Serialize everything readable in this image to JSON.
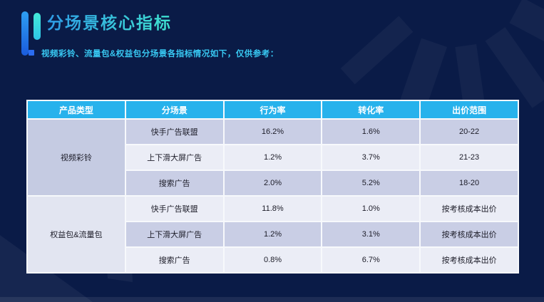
{
  "header": {
    "title": "分场景核心指标",
    "subtitle": "视频彩铃、流量包&权益包分场景各指标情况如下，仅供参考："
  },
  "table": {
    "columns": [
      "产品类型",
      "分场景",
      "行为率",
      "转化率",
      "出价范围"
    ],
    "groups": [
      {
        "product": "视频彩铃",
        "rows": [
          {
            "scene": "快手广告联盟",
            "behavior_rate": "16.2%",
            "conversion_rate": "1.6%",
            "bid_range": "20-22"
          },
          {
            "scene": "上下滑大屏广告",
            "behavior_rate": "1.2%",
            "conversion_rate": "3.7%",
            "bid_range": "21-23"
          },
          {
            "scene": "搜索广告",
            "behavior_rate": "2.0%",
            "conversion_rate": "5.2%",
            "bid_range": "18-20"
          }
        ]
      },
      {
        "product": "权益包&流量包",
        "rows": [
          {
            "scene": "快手广告联盟",
            "behavior_rate": "11.8%",
            "conversion_rate": "1.0%",
            "bid_range": "按考核成本出价"
          },
          {
            "scene": "上下滑大屏广告",
            "behavior_rate": "1.2%",
            "conversion_rate": "3.1%",
            "bid_range": "按考核成本出价"
          },
          {
            "scene": "搜索广告",
            "behavior_rate": "0.8%",
            "conversion_rate": "6.7%",
            "bid_range": "按考核成本出价"
          }
        ]
      }
    ]
  },
  "colors": {
    "background": "#0A1B47",
    "header_cell": "#27B2EC",
    "row_dark": "#C9CEE5",
    "row_light": "#EBEDF6",
    "group_dark": "#C5CBE2",
    "group_light": "#E2E5F1",
    "grid_line": "#F7F9FC",
    "cell_text": "#1C1C28",
    "title_gradient_start": "#2E9BE6",
    "title_gradient_end": "#3FE2D0",
    "subtitle_text": "#38C8F2",
    "bullet": "#2B6CF0",
    "logo_blue_top": "#2E9FF2",
    "logo_blue_bottom": "#1A5BDC",
    "logo_teal_top": "#44E9D8",
    "logo_teal_bottom": "#2EC6E8"
  }
}
